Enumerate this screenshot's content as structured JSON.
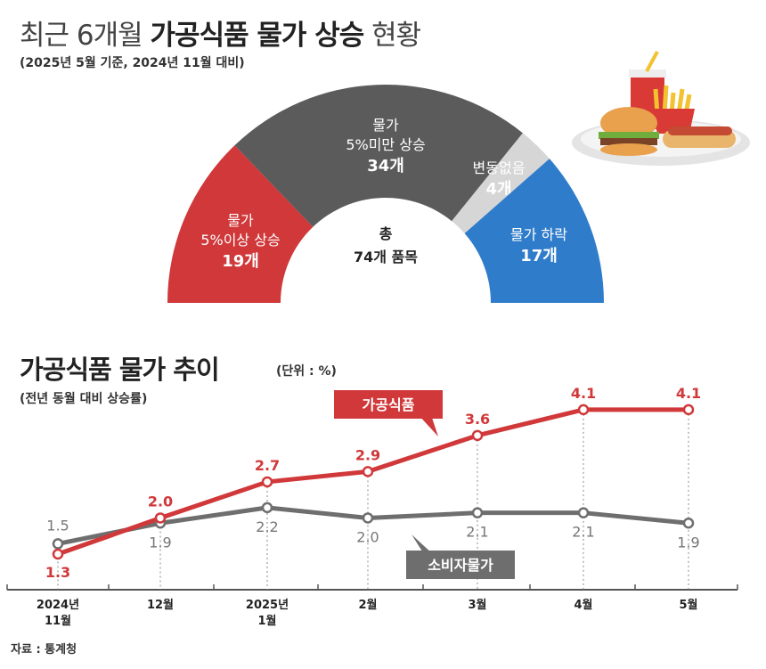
{
  "header": {
    "title_light": "최근 6개월",
    "title_bold": "가공식품 물가 상승",
    "title_end": "현황",
    "subtitle": "(2025년 5월 기준, 2024년 11월 대비)"
  },
  "chart_data": [
    {
      "type": "pie",
      "shape": "half-donut",
      "center_label": [
        "총",
        "74개 품목"
      ],
      "slices": [
        {
          "label": [
            "물가",
            "5%이상 상승"
          ],
          "value_label": "19개",
          "value": 19,
          "color": "#d0383a"
        },
        {
          "label": [
            "물가",
            "5%미만 상승"
          ],
          "value_label": "34개",
          "value": 34,
          "color": "#5b5b5b"
        },
        {
          "label": [
            "변동없음"
          ],
          "value_label": "4개",
          "value": 4,
          "color": "#d6d6d6"
        },
        {
          "label": [
            "물가 하락"
          ],
          "value_label": "17개",
          "value": 17,
          "color": "#2f7ccb"
        }
      ]
    },
    {
      "type": "line",
      "title": "가공식품 물가 추이",
      "unit": "(단위 : %)",
      "subtitle": "(전년 동월 대비 상승률)",
      "categories": [
        [
          "2024년",
          "11월"
        ],
        [
          "12월"
        ],
        [
          "2025년",
          "1월"
        ],
        [
          "2월"
        ],
        [
          "3월"
        ],
        [
          "4월"
        ],
        [
          "5월"
        ]
      ],
      "series": [
        {
          "name": "가공식품",
          "values": [
            1.3,
            2.0,
            2.7,
            2.9,
            3.6,
            4.1,
            4.1
          ],
          "color": "#d0383a"
        },
        {
          "name": "소비자물가",
          "values": [
            1.5,
            1.9,
            2.2,
            2.0,
            2.1,
            2.1,
            1.9
          ],
          "color": "#6e6e6e"
        }
      ],
      "value_labels": {
        "가공식품": [
          "1.3",
          "2.0",
          "2.7",
          "2.9",
          "3.6",
          "4.1",
          "4.1"
        ],
        "소비자물가": [
          "1.5",
          "1.9",
          "2.2",
          "2.0",
          "2.1",
          "2.1",
          "1.9"
        ]
      }
    }
  ],
  "footer": {
    "source": "자료 : 통계청"
  },
  "illustration": "fast-food-plate-icon"
}
